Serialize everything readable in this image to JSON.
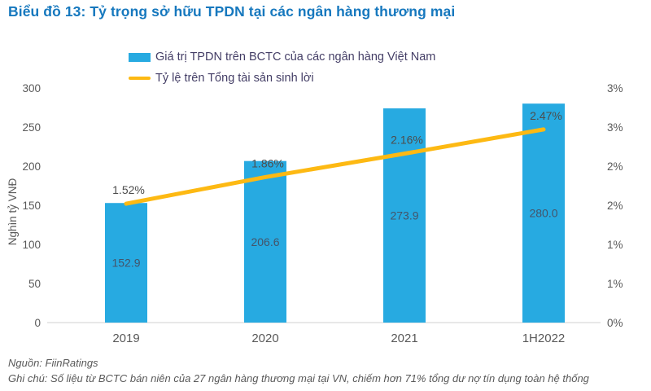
{
  "title": "Biểu đồ 13: Tỷ trọng sở hữu TPDN tại các ngân hàng thương mại",
  "legend": [
    {
      "label": "Giá trị TPDN trên BCTC của các ngân hàng Việt Nam",
      "type": "bar",
      "color": "#27AAE1"
    },
    {
      "label": "Tỷ lệ trên Tổng tài sản sinh lời",
      "type": "line",
      "color": "#FDB913"
    }
  ],
  "chart_data": {
    "type": "bar+line",
    "categories": [
      "2019",
      "2020",
      "2021",
      "1H2022"
    ],
    "series": [
      {
        "name": "Giá trị TPDN trên BCTC của các ngân hàng Việt Nam",
        "type": "bar",
        "axis": "left",
        "values": [
          152.9,
          206.6,
          273.9,
          280.0
        ],
        "labels": [
          "152.9",
          "206.6",
          "273.9",
          "280.0"
        ],
        "color": "#27AAE1"
      },
      {
        "name": "Tỷ lệ trên Tổng tài sản sinh lời",
        "type": "line",
        "axis": "right",
        "values": [
          1.52,
          1.86,
          2.16,
          2.47
        ],
        "labels": [
          "1.52%",
          "1.86%",
          "2.16%",
          "2.47%"
        ],
        "color": "#FDB913"
      }
    ],
    "left_axis": {
      "label": "Nghìn tỷ VNĐ",
      "min": 0,
      "max": 300,
      "ticks_bottom_to_top": [
        "0",
        "50",
        "100",
        "150",
        "200",
        "250",
        "300"
      ]
    },
    "right_axis": {
      "min": 0,
      "max": 3,
      "ticks_bottom_to_top": [
        "0%",
        "1%",
        "1%",
        "2%",
        "2%",
        "3%",
        "3%"
      ]
    },
    "grid": false,
    "legend_position": "top",
    "axis_line_color": "#D9D9D9",
    "tick_label_color": "#595959",
    "bar_value_label_color": "#44546A",
    "pct_label_color": "#4D4D4D"
  },
  "footer": {
    "source": "Nguồn: FiinRatings",
    "note": "Ghi chú: Số liệu từ BCTC bán niên của 27 ngân hàng thương mại tại VN, chiếm hơn 71% tổng dư nợ tín dụng toàn hệ thống"
  }
}
